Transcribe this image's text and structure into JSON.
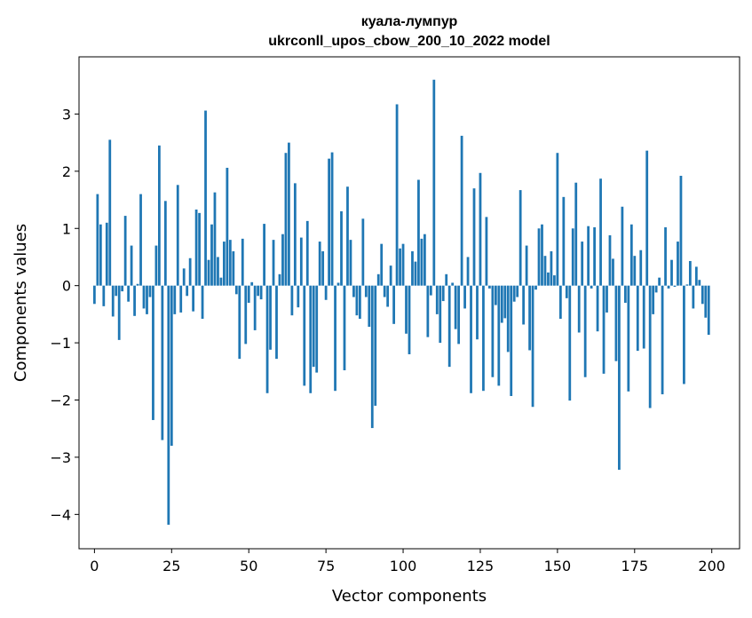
{
  "chart_data": {
    "type": "bar",
    "title_line1": "куала-лумпур",
    "title_line2": "ukrconll_upos_cbow_200_10_2022 model",
    "xlabel": "Vector components",
    "ylabel": "Components values",
    "xlim": [
      -5,
      209
    ],
    "ylim": [
      -4.6,
      4.0
    ],
    "xticks": [
      0,
      25,
      50,
      75,
      100,
      125,
      150,
      175,
      200
    ],
    "yticks": [
      -4,
      -3,
      -2,
      -1,
      0,
      1,
      2,
      3
    ],
    "grid": false,
    "bar_color": "#1f77b4",
    "x": [
      0,
      1,
      2,
      3,
      4,
      5,
      6,
      7,
      8,
      9,
      10,
      11,
      12,
      13,
      14,
      15,
      16,
      17,
      18,
      19,
      20,
      21,
      22,
      23,
      24,
      25,
      26,
      27,
      28,
      29,
      30,
      31,
      32,
      33,
      34,
      35,
      36,
      37,
      38,
      39,
      40,
      41,
      42,
      43,
      44,
      45,
      46,
      47,
      48,
      49,
      50,
      51,
      52,
      53,
      54,
      55,
      56,
      57,
      58,
      59,
      60,
      61,
      62,
      63,
      64,
      65,
      66,
      67,
      68,
      69,
      70,
      71,
      72,
      73,
      74,
      75,
      76,
      77,
      78,
      79,
      80,
      81,
      82,
      83,
      84,
      85,
      86,
      87,
      88,
      89,
      90,
      91,
      92,
      93,
      94,
      95,
      96,
      97,
      98,
      99,
      100,
      101,
      102,
      103,
      104,
      105,
      106,
      107,
      108,
      109,
      110,
      111,
      112,
      113,
      114,
      115,
      116,
      117,
      118,
      119,
      120,
      121,
      122,
      123,
      124,
      125,
      126,
      127,
      128,
      129,
      130,
      131,
      132,
      133,
      134,
      135,
      136,
      137,
      138,
      139,
      140,
      141,
      142,
      143,
      144,
      145,
      146,
      147,
      148,
      149,
      150,
      151,
      152,
      153,
      154,
      155,
      156,
      157,
      158,
      159,
      160,
      161,
      162,
      163,
      164,
      165,
      166,
      167,
      168,
      169,
      170,
      171,
      172,
      173,
      174,
      175,
      176,
      177,
      178,
      179,
      180,
      181,
      182,
      183,
      184,
      185,
      186,
      187,
      188,
      189,
      190,
      191,
      192,
      193,
      194,
      195,
      196,
      197,
      198,
      199
    ],
    "values": [
      -0.32,
      1.6,
      1.07,
      -0.36,
      1.1,
      2.55,
      -0.54,
      -0.18,
      -0.95,
      -0.1,
      1.22,
      -0.28,
      0.7,
      -0.53,
      0.03,
      1.6,
      -0.4,
      -0.5,
      -0.2,
      -2.35,
      0.7,
      2.45,
      -2.7,
      1.48,
      -4.18,
      -2.8,
      -0.5,
      1.76,
      -0.47,
      0.3,
      -0.18,
      0.48,
      -0.45,
      1.33,
      1.27,
      -0.58,
      3.06,
      0.45,
      1.07,
      1.63,
      0.5,
      0.14,
      0.77,
      2.06,
      0.8,
      0.6,
      -0.15,
      -1.28,
      0.82,
      -1.02,
      -0.3,
      0.06,
      -0.78,
      -0.18,
      -0.24,
      1.08,
      -1.88,
      -1.12,
      0.8,
      -1.28,
      0.2,
      0.9,
      2.32,
      2.5,
      -0.52,
      1.79,
      -0.38,
      0.84,
      -1.75,
      1.13,
      -1.88,
      -1.42,
      -1.52,
      0.77,
      0.6,
      -0.25,
      2.22,
      2.33,
      -1.84,
      0.05,
      1.3,
      -1.48,
      1.73,
      0.8,
      -0.2,
      -0.52,
      -0.58,
      1.17,
      -0.2,
      -0.72,
      -2.49,
      -2.1,
      0.2,
      0.73,
      -0.2,
      -0.37,
      0.35,
      -0.67,
      3.17,
      0.65,
      0.73,
      -0.84,
      -1.2,
      0.6,
      0.42,
      1.85,
      0.82,
      0.9,
      -0.9,
      -0.17,
      3.6,
      -0.5,
      -1.0,
      -0.27,
      0.2,
      -1.42,
      0.05,
      -0.76,
      -1.02,
      2.62,
      -0.4,
      0.5,
      -1.88,
      1.7,
      -0.94,
      1.97,
      -1.84,
      1.2,
      -0.05,
      -1.6,
      -0.34,
      -1.75,
      -0.65,
      -0.57,
      -1.16,
      -1.93,
      -0.28,
      -0.2,
      1.67,
      -0.68,
      0.7,
      -1.13,
      -2.12,
      -0.07,
      1.0,
      1.07,
      0.52,
      0.23,
      0.6,
      0.18,
      2.32,
      -0.58,
      1.55,
      -0.22,
      -2.01,
      1.0,
      1.8,
      -0.82,
      0.77,
      -1.6,
      1.04,
      -0.05,
      1.02,
      -0.8,
      1.87,
      -1.54,
      -0.47,
      0.88,
      0.47,
      -1.32,
      -3.22,
      1.38,
      -0.3,
      -1.85,
      1.07,
      0.52,
      -1.14,
      0.62,
      -1.1,
      2.36,
      -2.14,
      -0.5,
      -0.12,
      0.14,
      -1.9,
      1.02,
      -0.05,
      0.45,
      -0.02,
      0.77,
      1.92,
      -1.72,
      0.02,
      0.43,
      -0.4,
      0.33,
      0.1,
      -0.32,
      -0.56,
      -0.86
    ]
  }
}
